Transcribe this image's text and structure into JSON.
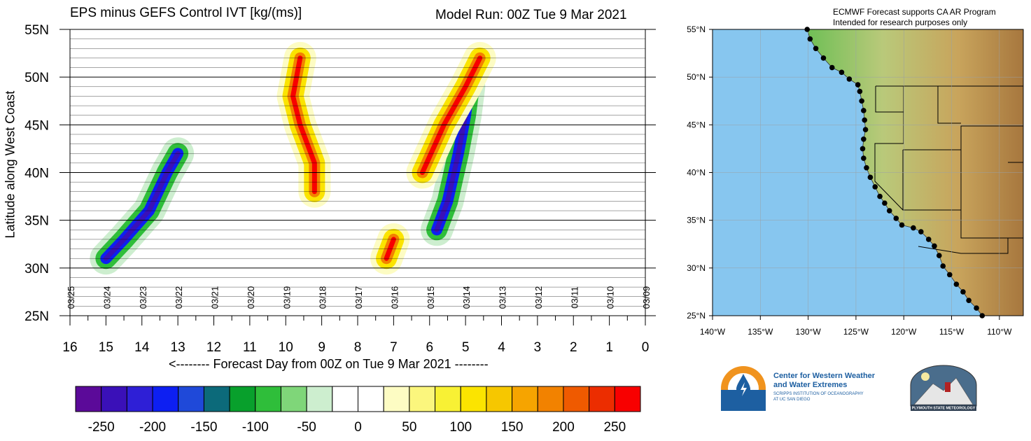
{
  "title": "EPS minus GEFS Control IVT [kg/(ms)]",
  "model_run": "Model Run: 00Z Tue 9 Mar 2021",
  "map_note_1": "ECMWF Forecast supports CA AR Program",
  "map_note_2": "Intended for research purposes only",
  "logo_cw3e": {
    "line1": "Center for Western Weather",
    "line2": "and Water Extremes",
    "line3": "SCRIPPS INSTITUTION OF OCEANOGRAPHY",
    "line4": "AT UC SAN DIEGO"
  },
  "logo_psu": "PLYMOUTH STATE METEOROLOGY",
  "colors": {
    "ocean": "#87c6ef",
    "land": "#c8d08c"
  },
  "chart_data": [
    {
      "type": "heatmap",
      "title": "EPS minus GEFS Control IVT [kg/(ms)]",
      "xlabel": "<-------- Forecast Day from 00Z on Tue 9 Mar 2021 --------",
      "ylabel": "Latitude along West Coast",
      "x_ticks": [
        "16",
        "15",
        "14",
        "13",
        "12",
        "11",
        "10",
        "9",
        "8",
        "7",
        "6",
        "5",
        "4",
        "3",
        "2",
        "1",
        "0"
      ],
      "xlim": [
        16,
        0
      ],
      "y_ticks": [
        "25N",
        "30N",
        "35N",
        "40N",
        "45N",
        "50N",
        "55N"
      ],
      "ylim": [
        25,
        55
      ],
      "date_labels": [
        "03/25",
        "03/24",
        "03/23",
        "03/22",
        "03/21",
        "03/20",
        "03/19",
        "03/18",
        "03/17",
        "03/16",
        "03/15",
        "03/14",
        "03/13",
        "03/12",
        "03/11",
        "03/10",
        "03/09"
      ],
      "colorbar": {
        "ticks": [
          "-250",
          "-200",
          "-150",
          "-100",
          "-50",
          "0",
          "50",
          "100",
          "150",
          "200",
          "250"
        ],
        "colors": [
          "#5b0a99",
          "#3a10b8",
          "#2e1fd6",
          "#0d1ff2",
          "#1f49d9",
          "#0c6a7a",
          "#08a02c",
          "#2fbe3a",
          "#7fd679",
          "#cdeecf",
          "#ffffff",
          "#ffffff",
          "#fdfcc3",
          "#fbf67d",
          "#f8f134",
          "#fbe400",
          "#f6c700",
          "#f6a400",
          "#f28200",
          "#ef5a00",
          "#ec2d00",
          "#f80000"
        ]
      },
      "features": [
        {
          "label": "negative band (blue)",
          "points": [
            [
              15,
              31
            ],
            [
              14.5,
              33
            ],
            [
              13.8,
              36
            ],
            [
              13.3,
              40
            ],
            [
              13.0,
              42
            ]
          ]
        },
        {
          "label": "negative band (blue)",
          "points": [
            [
              5.8,
              34
            ],
            [
              5.5,
              37
            ],
            [
              5.2,
              42
            ],
            [
              5.0,
              46
            ],
            [
              4.9,
              49
            ]
          ]
        },
        {
          "label": "positive band (red)",
          "points": [
            [
              9.2,
              38
            ],
            [
              9.2,
              41
            ],
            [
              9.6,
              45
            ],
            [
              9.8,
              48
            ],
            [
              9.6,
              52
            ]
          ]
        },
        {
          "label": "positive band (red)",
          "points": [
            [
              6.2,
              40
            ],
            [
              5.6,
              45
            ],
            [
              5.0,
              49
            ],
            [
              4.6,
              52
            ]
          ]
        },
        {
          "label": "positive band (red)",
          "points": [
            [
              7.2,
              31
            ],
            [
              7.1,
              32
            ],
            [
              7.0,
              33
            ]
          ]
        }
      ]
    },
    {
      "type": "map",
      "lon_ticks": [
        "140°W",
        "135°W",
        "130°W",
        "125°W",
        "120°W",
        "115°W",
        "110°W"
      ],
      "lat_ticks": [
        "25°N",
        "30°N",
        "35°N",
        "40°N",
        "45°N",
        "50°N",
        "55°N"
      ],
      "lon_range": [
        -140,
        -107.5
      ],
      "lat_range": [
        25,
        55
      ],
      "coast_points": [
        [
          -130.1,
          55
        ],
        [
          -129.8,
          54
        ],
        [
          -129.2,
          53
        ],
        [
          -128.4,
          52
        ],
        [
          -127.5,
          51
        ],
        [
          -126.5,
          50.5
        ],
        [
          -125.7,
          49.8
        ],
        [
          -124.8,
          49.2
        ],
        [
          -124.6,
          48.5
        ],
        [
          -124.4,
          47.5
        ],
        [
          -124.2,
          46.5
        ],
        [
          -124.1,
          45.5
        ],
        [
          -124.0,
          44.5
        ],
        [
          -124.2,
          43.5
        ],
        [
          -124.3,
          42.5
        ],
        [
          -124.2,
          41.5
        ],
        [
          -123.9,
          40.5
        ],
        [
          -123.5,
          39.5
        ],
        [
          -123.0,
          38.5
        ],
        [
          -122.5,
          37.5
        ],
        [
          -122.0,
          36.8
        ],
        [
          -121.5,
          36.0
        ],
        [
          -120.8,
          35.2
        ],
        [
          -120.2,
          34.5
        ],
        [
          -119.0,
          34.2
        ],
        [
          -118.2,
          33.8
        ],
        [
          -117.4,
          33.0
        ],
        [
          -116.8,
          32.3
        ],
        [
          -116.3,
          31.3
        ],
        [
          -115.9,
          30.2
        ],
        [
          -115.2,
          29.3
        ],
        [
          -114.5,
          28.3
        ],
        [
          -113.8,
          27.5
        ],
        [
          -113.2,
          26.6
        ],
        [
          -112.4,
          25.8
        ],
        [
          -111.8,
          25.0
        ]
      ]
    }
  ]
}
